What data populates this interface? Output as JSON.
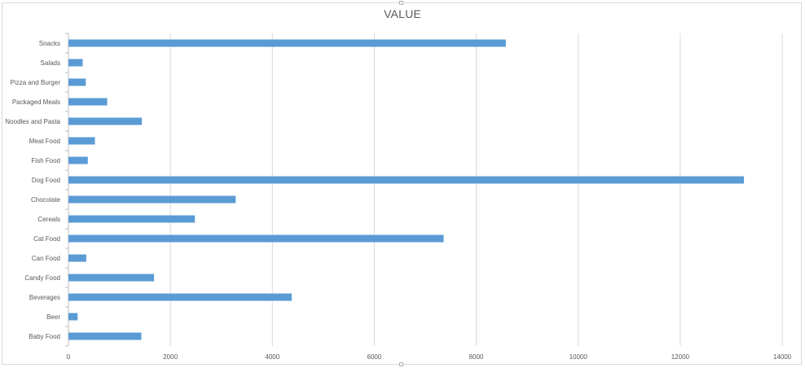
{
  "chart_data": {
    "type": "bar",
    "orientation": "horizontal",
    "title": "VALUE",
    "categories": [
      "Snacks",
      "Salads",
      "Pizza and Burger",
      "Packaged Meals",
      "Noodles and Pasta",
      "Meat Food",
      "Fish Food",
      "Dog Food",
      "Chocolate",
      "Cereals",
      "Cat Food",
      "Can Food",
      "Candy Food",
      "Beverages",
      "Beer",
      "Baby Food"
    ],
    "values": [
      8580,
      280,
      340,
      760,
      1440,
      520,
      380,
      13250,
      3280,
      2480,
      7360,
      350,
      1680,
      4380,
      180,
      1430
    ],
    "xlim": [
      0,
      14000
    ],
    "xticks": [
      "0",
      "2000",
      "4000",
      "6000",
      "8000",
      "10000",
      "12000",
      "14000"
    ],
    "grid": "vertical",
    "legend": "none",
    "bar_color": "#5b9bd5",
    "grid_color": "#d9d9d9",
    "axis_color": "#bfbfbf",
    "text_color": "#595959"
  }
}
